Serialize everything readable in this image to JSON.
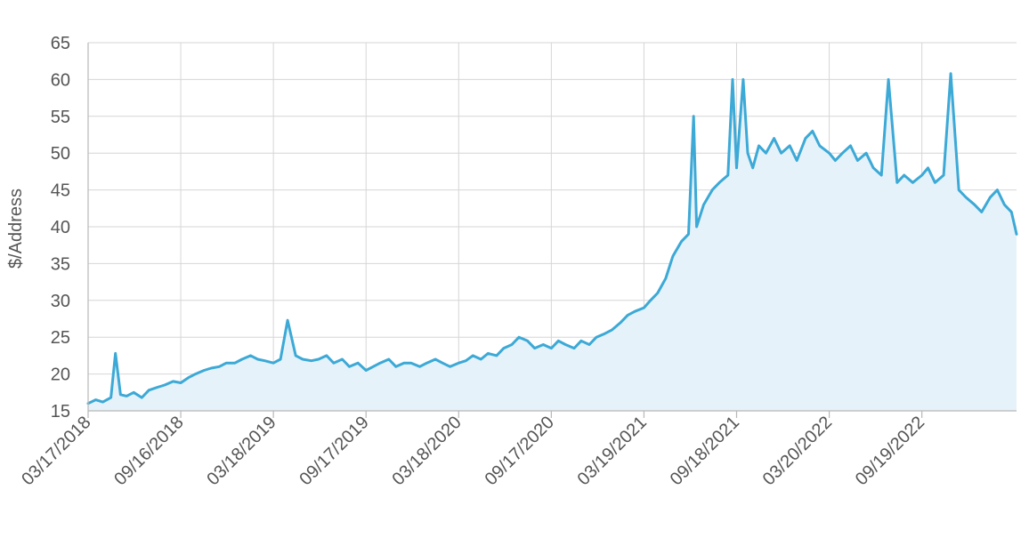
{
  "chart_data": {
    "type": "area",
    "title": "",
    "xlabel": "",
    "ylabel": "$/Address",
    "ylim": [
      15,
      65
    ],
    "xlim": [
      "2018-03-17",
      "2023-03-25"
    ],
    "grid": true,
    "legend": "none",
    "colors": {
      "line": "#3ca9d6",
      "fill": "#e6f2fa",
      "grid": "#d6d6d6"
    },
    "y_ticks": [
      "15",
      "20",
      "25",
      "30",
      "35",
      "40",
      "45",
      "50",
      "55",
      "60",
      "65"
    ],
    "x_ticks": [
      {
        "date": "2018-03-17",
        "label": "03/17/2018"
      },
      {
        "date": "2018-09-16",
        "label": "09/16/2018"
      },
      {
        "date": "2019-03-18",
        "label": "03/18/2019"
      },
      {
        "date": "2019-09-17",
        "label": "09/17/2019"
      },
      {
        "date": "2020-03-18",
        "label": "03/18/2020"
      },
      {
        "date": "2020-09-17",
        "label": "09/17/2020"
      },
      {
        "date": "2021-03-19",
        "label": "03/19/2021"
      },
      {
        "date": "2021-09-18",
        "label": "09/18/2021"
      },
      {
        "date": "2022-03-20",
        "label": "03/20/2022"
      },
      {
        "date": "2022-09-19",
        "label": "09/19/2022"
      }
    ],
    "series": [
      {
        "values": [
          [
            "2018-03-17",
            16.0
          ],
          [
            "2018-04-01",
            16.5
          ],
          [
            "2018-04-15",
            16.2
          ],
          [
            "2018-05-01",
            16.8
          ],
          [
            "2018-05-10",
            22.8
          ],
          [
            "2018-05-20",
            17.2
          ],
          [
            "2018-06-01",
            17.0
          ],
          [
            "2018-06-15",
            17.5
          ],
          [
            "2018-07-01",
            16.8
          ],
          [
            "2018-07-15",
            17.8
          ],
          [
            "2018-08-01",
            18.2
          ],
          [
            "2018-08-15",
            18.5
          ],
          [
            "2018-09-01",
            19.0
          ],
          [
            "2018-09-16",
            18.8
          ],
          [
            "2018-10-01",
            19.5
          ],
          [
            "2018-10-15",
            20.0
          ],
          [
            "2018-11-01",
            20.5
          ],
          [
            "2018-11-15",
            20.8
          ],
          [
            "2018-12-01",
            21.0
          ],
          [
            "2018-12-15",
            21.5
          ],
          [
            "2019-01-01",
            21.5
          ],
          [
            "2019-01-15",
            22.0
          ],
          [
            "2019-02-01",
            22.5
          ],
          [
            "2019-02-15",
            22.0
          ],
          [
            "2019-03-01",
            21.8
          ],
          [
            "2019-03-18",
            21.5
          ],
          [
            "2019-04-01",
            22.0
          ],
          [
            "2019-04-15",
            27.3
          ],
          [
            "2019-05-01",
            22.5
          ],
          [
            "2019-05-15",
            22.0
          ],
          [
            "2019-06-01",
            21.8
          ],
          [
            "2019-06-15",
            22.0
          ],
          [
            "2019-07-01",
            22.5
          ],
          [
            "2019-07-15",
            21.5
          ],
          [
            "2019-08-01",
            22.0
          ],
          [
            "2019-08-15",
            21.0
          ],
          [
            "2019-09-01",
            21.5
          ],
          [
            "2019-09-17",
            20.5
          ],
          [
            "2019-10-01",
            21.0
          ],
          [
            "2019-10-15",
            21.5
          ],
          [
            "2019-11-01",
            22.0
          ],
          [
            "2019-11-15",
            21.0
          ],
          [
            "2019-12-01",
            21.5
          ],
          [
            "2019-12-15",
            21.5
          ],
          [
            "2020-01-01",
            21.0
          ],
          [
            "2020-01-15",
            21.5
          ],
          [
            "2020-02-01",
            22.0
          ],
          [
            "2020-02-15",
            21.5
          ],
          [
            "2020-03-01",
            21.0
          ],
          [
            "2020-03-18",
            21.5
          ],
          [
            "2020-04-01",
            21.8
          ],
          [
            "2020-04-15",
            22.5
          ],
          [
            "2020-05-01",
            22.0
          ],
          [
            "2020-05-15",
            22.8
          ],
          [
            "2020-06-01",
            22.5
          ],
          [
            "2020-06-15",
            23.5
          ],
          [
            "2020-07-01",
            24.0
          ],
          [
            "2020-07-15",
            25.0
          ],
          [
            "2020-08-01",
            24.5
          ],
          [
            "2020-08-15",
            23.5
          ],
          [
            "2020-09-01",
            24.0
          ],
          [
            "2020-09-17",
            23.5
          ],
          [
            "2020-10-01",
            24.5
          ],
          [
            "2020-10-15",
            24.0
          ],
          [
            "2020-11-01",
            23.5
          ],
          [
            "2020-11-15",
            24.5
          ],
          [
            "2020-12-01",
            24.0
          ],
          [
            "2020-12-15",
            25.0
          ],
          [
            "2021-01-01",
            25.5
          ],
          [
            "2021-01-15",
            26.0
          ],
          [
            "2021-02-01",
            27.0
          ],
          [
            "2021-02-15",
            28.0
          ],
          [
            "2021-03-01",
            28.5
          ],
          [
            "2021-03-19",
            29.0
          ],
          [
            "2021-04-01",
            30.0
          ],
          [
            "2021-04-15",
            31.0
          ],
          [
            "2021-05-01",
            33.0
          ],
          [
            "2021-05-15",
            36.0
          ],
          [
            "2021-06-01",
            38.0
          ],
          [
            "2021-06-15",
            39.0
          ],
          [
            "2021-06-25",
            55.0
          ],
          [
            "2021-07-01",
            40.0
          ],
          [
            "2021-07-15",
            43.0
          ],
          [
            "2021-08-01",
            45.0
          ],
          [
            "2021-08-15",
            46.0
          ],
          [
            "2021-09-01",
            47.0
          ],
          [
            "2021-09-10",
            60.0
          ],
          [
            "2021-09-18",
            48.0
          ],
          [
            "2021-10-01",
            60.0
          ],
          [
            "2021-10-10",
            50.0
          ],
          [
            "2021-10-20",
            48.0
          ],
          [
            "2021-11-01",
            51.0
          ],
          [
            "2021-11-15",
            50.0
          ],
          [
            "2021-12-01",
            52.0
          ],
          [
            "2021-12-15",
            50.0
          ],
          [
            "2022-01-01",
            51.0
          ],
          [
            "2022-01-15",
            49.0
          ],
          [
            "2022-02-01",
            52.0
          ],
          [
            "2022-02-15",
            53.0
          ],
          [
            "2022-03-01",
            51.0
          ],
          [
            "2022-03-20",
            50.0
          ],
          [
            "2022-04-01",
            49.0
          ],
          [
            "2022-04-15",
            50.0
          ],
          [
            "2022-05-01",
            51.0
          ],
          [
            "2022-05-15",
            49.0
          ],
          [
            "2022-06-01",
            50.0
          ],
          [
            "2022-06-15",
            48.0
          ],
          [
            "2022-07-01",
            47.0
          ],
          [
            "2022-07-15",
            60.0
          ],
          [
            "2022-08-01",
            46.0
          ],
          [
            "2022-08-15",
            47.0
          ],
          [
            "2022-09-01",
            46.0
          ],
          [
            "2022-09-19",
            47.0
          ],
          [
            "2022-10-01",
            48.0
          ],
          [
            "2022-10-15",
            46.0
          ],
          [
            "2022-11-01",
            47.0
          ],
          [
            "2022-11-15",
            60.8
          ],
          [
            "2022-12-01",
            45.0
          ],
          [
            "2022-12-15",
            44.0
          ],
          [
            "2023-01-01",
            43.0
          ],
          [
            "2023-01-15",
            42.0
          ],
          [
            "2023-02-01",
            44.0
          ],
          [
            "2023-02-15",
            45.0
          ],
          [
            "2023-03-01",
            43.0
          ],
          [
            "2023-03-15",
            42.0
          ],
          [
            "2023-03-25",
            39.0
          ]
        ]
      }
    ]
  }
}
